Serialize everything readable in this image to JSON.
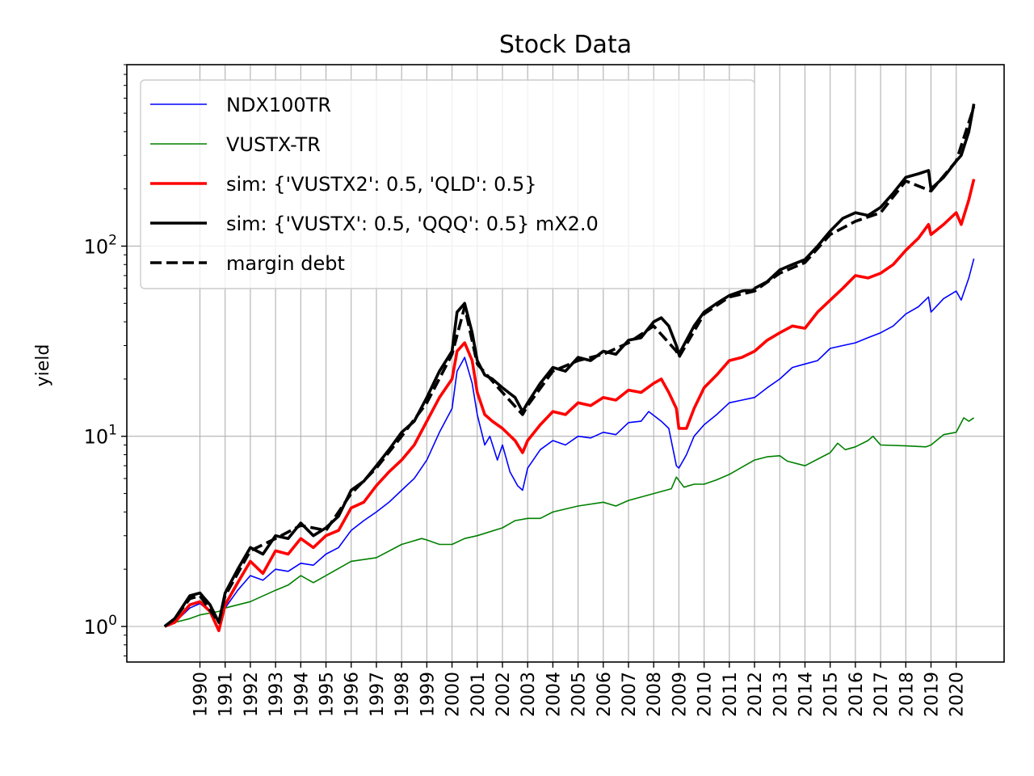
{
  "chart_data": {
    "type": "line",
    "title": "Stock Data",
    "xlabel": "",
    "ylabel": "yield",
    "yscale": "log",
    "ylim": [
      0.65,
      900
    ],
    "xlim": [
      1987.1,
      2021.9
    ],
    "yticks": [
      {
        "base": "10",
        "exp": "0",
        "value": 1
      },
      {
        "base": "10",
        "exp": "1",
        "value": 10
      },
      {
        "base": "10",
        "exp": "2",
        "value": 100
      }
    ],
    "xticks": [
      "1990",
      "1991",
      "1992",
      "1993",
      "1994",
      "1995",
      "1996",
      "1997",
      "1998",
      "1999",
      "2000",
      "2001",
      "2002",
      "2003",
      "2004",
      "2005",
      "2006",
      "2007",
      "2008",
      "2009",
      "2010",
      "2011",
      "2012",
      "2013",
      "2014",
      "2015",
      "2016",
      "2017",
      "2018",
      "2019",
      "2020"
    ],
    "grid": true,
    "legend_position": "upper-left",
    "series": [
      {
        "name": "NDX100TR",
        "color": "#0000ff",
        "style": "solid",
        "weight": "thin",
        "x": [
          1988.6,
          1989.0,
          1989.6,
          1990.0,
          1990.4,
          1990.75,
          1991.0,
          1991.5,
          1992.0,
          1992.5,
          1993.0,
          1993.5,
          1994.0,
          1994.5,
          1995.0,
          1995.5,
          1996.0,
          1996.5,
          1997.0,
          1997.5,
          1998.0,
          1998.5,
          1999.0,
          1999.5,
          2000.0,
          2000.2,
          2000.5,
          2000.8,
          2001.0,
          2001.3,
          2001.5,
          2001.8,
          2002.0,
          2002.3,
          2002.6,
          2002.8,
          2003.0,
          2003.5,
          2004.0,
          2004.5,
          2005.0,
          2005.5,
          2006.0,
          2006.5,
          2007.0,
          2007.5,
          2007.8,
          2008.3,
          2008.6,
          2008.9,
          2009.0,
          2009.3,
          2009.6,
          2010.0,
          2010.5,
          2011.0,
          2011.5,
          2012.0,
          2012.5,
          2013.0,
          2013.5,
          2014.0,
          2014.5,
          2015.0,
          2015.5,
          2016.0,
          2016.5,
          2017.0,
          2017.5,
          2018.0,
          2018.5,
          2018.9,
          2019.0,
          2019.5,
          2020.0,
          2020.2,
          2020.5,
          2020.7
        ],
        "values": [
          1.0,
          1.05,
          1.25,
          1.32,
          1.2,
          0.95,
          1.25,
          1.55,
          1.85,
          1.75,
          2.0,
          1.95,
          2.15,
          2.1,
          2.4,
          2.6,
          3.2,
          3.6,
          4.0,
          4.5,
          5.2,
          6.0,
          7.5,
          10.5,
          14,
          22,
          26,
          19,
          13,
          9,
          10,
          7.5,
          9,
          6.5,
          5.5,
          5.2,
          6.8,
          8.5,
          9.5,
          9.0,
          10.0,
          9.8,
          10.5,
          10.2,
          11.8,
          12.0,
          13.5,
          12,
          11,
          7.0,
          6.8,
          8,
          10,
          11.5,
          13,
          15,
          15.5,
          16,
          18,
          20,
          23,
          24,
          25,
          29,
          30,
          31,
          33,
          35,
          38,
          44,
          48,
          54,
          45,
          53,
          58,
          52,
          68,
          86
        ]
      },
      {
        "name": "VUSTX-TR",
        "color": "#008000",
        "style": "solid",
        "weight": "thin",
        "x": [
          1988.6,
          1989.0,
          1989.6,
          1990.0,
          1990.75,
          1991.0,
          1992.0,
          1993.0,
          1993.5,
          1994.0,
          1994.5,
          1995.0,
          1996.0,
          1997.0,
          1998.0,
          1998.8,
          1999.0,
          1999.5,
          2000.0,
          2000.5,
          2001.0,
          2002.0,
          2002.5,
          2003.0,
          2003.5,
          2004.0,
          2005.0,
          2006.0,
          2006.5,
          2007.0,
          2008.0,
          2008.7,
          2008.9,
          2009.2,
          2009.6,
          2010.0,
          2010.5,
          2011.0,
          2011.6,
          2012.0,
          2012.5,
          2013.0,
          2013.3,
          2014.0,
          2015.0,
          2015.3,
          2015.6,
          2016.0,
          2016.5,
          2016.7,
          2017.0,
          2018.0,
          2018.8,
          2019.0,
          2019.5,
          2020.0,
          2020.3,
          2020.5,
          2020.7
        ],
        "values": [
          1.0,
          1.05,
          1.1,
          1.15,
          1.2,
          1.25,
          1.35,
          1.55,
          1.65,
          1.85,
          1.7,
          1.85,
          2.2,
          2.3,
          2.7,
          2.9,
          2.85,
          2.7,
          2.7,
          2.9,
          3.0,
          3.3,
          3.6,
          3.7,
          3.7,
          4.0,
          4.3,
          4.5,
          4.3,
          4.6,
          5.0,
          5.3,
          6.1,
          5.4,
          5.6,
          5.6,
          5.9,
          6.3,
          7.0,
          7.5,
          7.8,
          7.9,
          7.4,
          7.0,
          8.2,
          9.2,
          8.5,
          8.8,
          9.5,
          10.0,
          9.0,
          8.9,
          8.8,
          9.0,
          10.2,
          10.5,
          12.5,
          12.0,
          12.5
        ]
      },
      {
        "name": "sim: {'VUSTX2': 0.5, 'QLD': 0.5}",
        "color": "#ff0000",
        "style": "solid",
        "weight": "thick",
        "x": [
          1988.6,
          1989.0,
          1989.6,
          1990.0,
          1990.4,
          1990.75,
          1991.0,
          1991.5,
          1992.0,
          1992.5,
          1993.0,
          1993.5,
          1994.0,
          1994.5,
          1995.0,
          1995.5,
          1996.0,
          1996.5,
          1997.0,
          1997.5,
          1998.0,
          1998.5,
          1999.0,
          1999.5,
          2000.0,
          2000.2,
          2000.5,
          2000.8,
          2001.0,
          2001.3,
          2001.6,
          2002.0,
          2002.5,
          2002.8,
          2003.0,
          2003.5,
          2004.0,
          2004.5,
          2005.0,
          2005.5,
          2006.0,
          2006.5,
          2007.0,
          2007.5,
          2008.0,
          2008.3,
          2008.6,
          2008.9,
          2009.0,
          2009.3,
          2009.6,
          2010.0,
          2010.5,
          2011.0,
          2011.5,
          2012.0,
          2012.5,
          2013.0,
          2013.5,
          2014.0,
          2014.5,
          2015.0,
          2015.5,
          2016.0,
          2016.5,
          2017.0,
          2017.5,
          2018.0,
          2018.5,
          2018.9,
          2019.0,
          2019.5,
          2020.0,
          2020.2,
          2020.5,
          2020.7
        ],
        "values": [
          1.0,
          1.05,
          1.3,
          1.35,
          1.2,
          0.95,
          1.3,
          1.7,
          2.2,
          1.9,
          2.5,
          2.4,
          2.9,
          2.6,
          3.0,
          3.2,
          4.2,
          4.5,
          5.5,
          6.5,
          7.5,
          9.0,
          12,
          16,
          20,
          28,
          31,
          25,
          17,
          13,
          12,
          11,
          9.5,
          8.2,
          9.5,
          11.5,
          13.5,
          13.0,
          15.0,
          14.5,
          16.0,
          15.5,
          17.5,
          17.0,
          19.0,
          20,
          17,
          14,
          11,
          11,
          14,
          18,
          21,
          25,
          26,
          28,
          32,
          35,
          38,
          37,
          45,
          52,
          60,
          70,
          68,
          72,
          80,
          95,
          110,
          130,
          115,
          130,
          150,
          130,
          175,
          225
        ]
      },
      {
        "name": "sim: {'VUSTX': 0.5, 'QQQ': 0.5} mX2.0",
        "color": "#000000",
        "style": "solid",
        "weight": "thick",
        "x": [
          1988.6,
          1989.0,
          1989.6,
          1990.0,
          1990.4,
          1990.75,
          1991.0,
          1991.5,
          1992.0,
          1992.5,
          1993.0,
          1993.5,
          1994.0,
          1994.5,
          1995.0,
          1995.5,
          1996.0,
          1996.5,
          1997.0,
          1997.5,
          1998.0,
          1998.5,
          1999.0,
          1999.5,
          2000.0,
          2000.2,
          2000.5,
          2000.8,
          2001.0,
          2001.3,
          2001.6,
          2002.0,
          2002.5,
          2002.8,
          2003.0,
          2003.5,
          2004.0,
          2004.5,
          2005.0,
          2005.5,
          2006.0,
          2006.5,
          2007.0,
          2007.5,
          2008.0,
          2008.3,
          2008.6,
          2008.9,
          2009.0,
          2009.3,
          2009.6,
          2010.0,
          2010.5,
          2011.0,
          2011.5,
          2012.0,
          2012.5,
          2013.0,
          2013.5,
          2014.0,
          2014.5,
          2015.0,
          2015.5,
          2016.0,
          2016.5,
          2017.0,
          2017.5,
          2018.0,
          2018.5,
          2018.9,
          2019.0,
          2019.5,
          2020.0,
          2020.2,
          2020.5,
          2020.7
        ],
        "values": [
          1.0,
          1.1,
          1.45,
          1.5,
          1.3,
          1.05,
          1.5,
          2.0,
          2.6,
          2.4,
          3.0,
          2.9,
          3.5,
          3.0,
          3.3,
          3.8,
          5.2,
          5.8,
          7.0,
          8.5,
          10.5,
          12,
          16,
          22,
          28,
          45,
          50,
          35,
          25,
          21,
          20,
          18,
          16,
          13.5,
          15,
          19,
          23,
          22,
          26,
          25,
          28,
          27,
          32,
          33,
          40,
          42,
          38,
          30,
          27,
          32,
          38,
          45,
          50,
          55,
          58,
          60,
          65,
          75,
          80,
          85,
          100,
          120,
          140,
          150,
          145,
          160,
          190,
          230,
          240,
          250,
          200,
          230,
          280,
          300,
          400,
          560
        ]
      },
      {
        "name": "margin debt",
        "color": "#000000",
        "style": "dashed",
        "weight": "thick",
        "x": [
          1988.6,
          1989.0,
          1989.6,
          1990.0,
          1990.75,
          1991.0,
          1992.0,
          1993.0,
          1994.0,
          1995.0,
          1996.0,
          1997.0,
          1998.0,
          1999.0,
          2000.0,
          2000.5,
          2001.0,
          2002.0,
          2002.8,
          2003.0,
          2004.0,
          2005.0,
          2006.0,
          2007.0,
          2008.0,
          2008.9,
          2009.0,
          2010.0,
          2011.0,
          2012.0,
          2013.0,
          2014.0,
          2015.0,
          2016.0,
          2017.0,
          2018.0,
          2019.0,
          2020.0,
          2020.7
        ],
        "values": [
          1.0,
          1.1,
          1.4,
          1.45,
          1.05,
          1.45,
          2.5,
          2.9,
          3.4,
          3.2,
          5.0,
          6.8,
          10.0,
          15,
          27,
          48,
          24,
          17,
          13,
          14.5,
          22,
          25,
          27,
          31,
          38,
          28,
          26,
          44,
          54,
          58,
          72,
          82,
          115,
          135,
          150,
          220,
          195,
          280,
          540
        ]
      }
    ]
  }
}
